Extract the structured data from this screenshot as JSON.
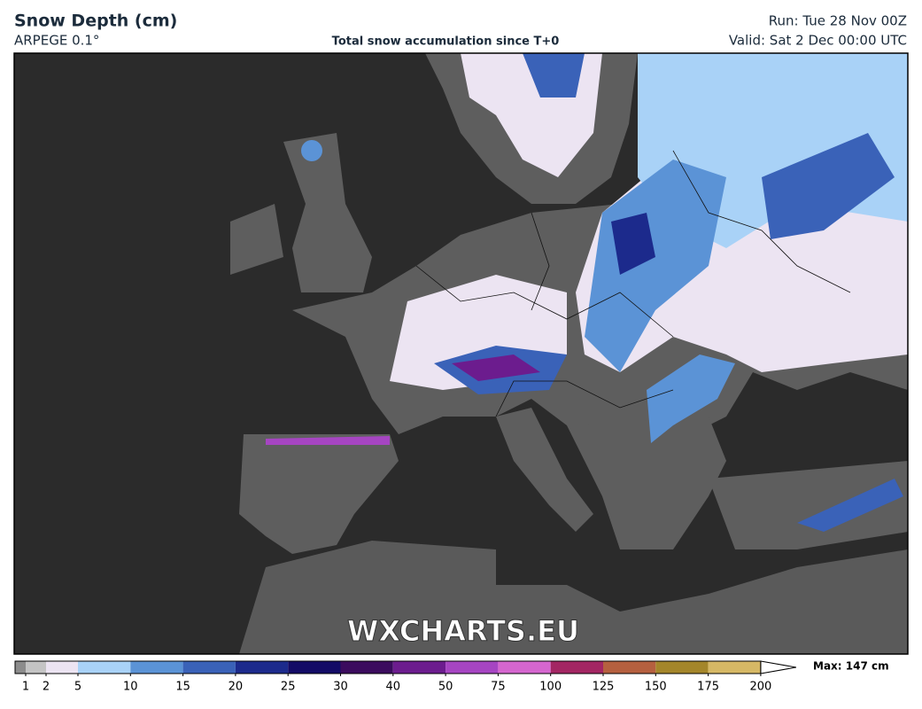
{
  "header": {
    "title": "Snow Depth (cm)",
    "model": "ARPEGE 0.1°",
    "subtitle": "Total snow accumulation since T+0",
    "run": "Run: Tue 28 Nov 00Z",
    "valid": "Valid: Sat 2 Dec 00:00 UTC"
  },
  "watermark": "WXCHARTS.EU",
  "legend": {
    "levels": [
      1,
      2,
      5,
      10,
      15,
      20,
      25,
      30,
      40,
      50,
      75,
      100,
      125,
      150,
      175,
      200
    ],
    "colors": [
      "#8c8c8c",
      "#c4c4c4",
      "#ece4f2",
      "#a9d2f7",
      "#5b93d6",
      "#3a62b8",
      "#1c2a8c",
      "#130b66",
      "#3b0c5e",
      "#6c1c8e",
      "#a645c2",
      "#d566cf",
      "#a32663",
      "#b5603f",
      "#a4862a",
      "#d6b865",
      "#f6df9f"
    ],
    "max": "Max: 147 cm"
  }
}
